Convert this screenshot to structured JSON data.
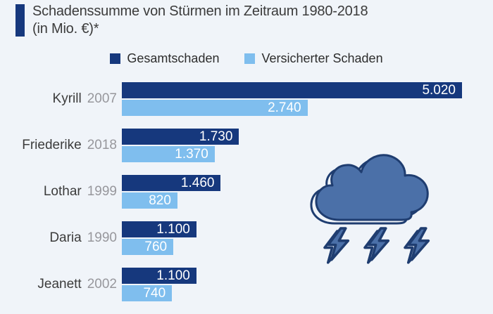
{
  "title": {
    "line1": "Schadenssumme von Stürmen im Zeitraum 1980-2018",
    "line2": "(in Mio. €)*"
  },
  "legend": [
    {
      "label": "Gesamtschaden",
      "color": "#16387d"
    },
    {
      "label": "Versicherter Schaden",
      "color": "#7fbeee"
    }
  ],
  "colors": {
    "background": "#f0f4f9",
    "accent_bar": "#16387d",
    "bar_dark": "#16387d",
    "bar_light": "#7fbeee",
    "value_text": "#ffffff",
    "storm_name_text": "#3c3c3c",
    "year_text": "#97979c",
    "cloud_fill": "#4b70a8",
    "cloud_outline": "#1f3d70"
  },
  "icon": {
    "name": "storm-cloud-with-lightning",
    "bolt_count": 3
  },
  "chart_data": {
    "type": "bar",
    "orientation": "horizontal",
    "title": "Schadenssumme von Stürmen im Zeitraum 1980-2018 (in Mio. €)*",
    "unit": "Mio. €",
    "grid": false,
    "legend_position": "top",
    "xlim": [
      0,
      5020
    ],
    "xmax": 5020,
    "storms": [
      {
        "name": "Kyrill",
        "year": "2007"
      },
      {
        "name": "Friederike",
        "year": "2018"
      },
      {
        "name": "Lothar",
        "year": "1999"
      },
      {
        "name": "Daria",
        "year": "1990"
      },
      {
        "name": "Jeanett",
        "year": "2002"
      }
    ],
    "series": [
      {
        "name": "Gesamtschaden",
        "color": "#16387d",
        "values": [
          5020,
          1730,
          1460,
          1100,
          1100
        ],
        "value_labels": [
          "5.020",
          "1.730",
          "1.460",
          "1.100",
          "1.100"
        ]
      },
      {
        "name": "Versicherter Schaden",
        "color": "#7fbeee",
        "values": [
          2740,
          1370,
          820,
          760,
          740
        ],
        "value_labels": [
          "2.740",
          "1.370",
          "820",
          "760",
          "740"
        ]
      }
    ]
  }
}
